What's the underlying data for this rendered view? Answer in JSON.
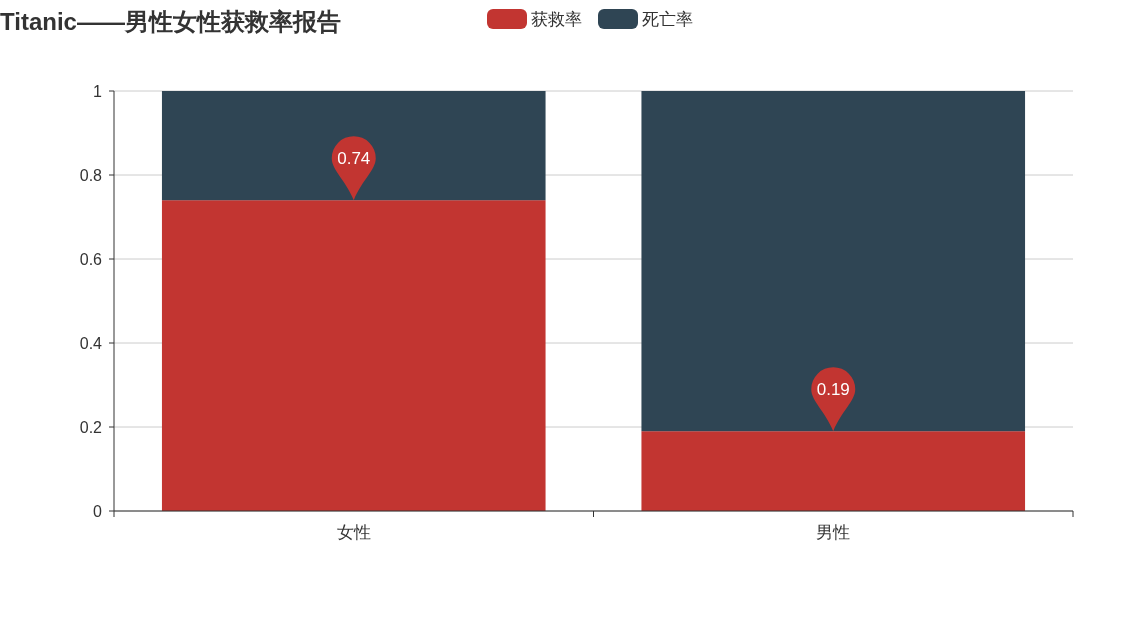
{
  "chart_data": {
    "type": "bar",
    "title": "Titanic——男性女性获救率报告",
    "categories": [
      "女性",
      "男性"
    ],
    "stacked": true,
    "ylim": [
      0,
      1
    ],
    "yticks": [
      0,
      0.2,
      0.4,
      0.6,
      0.8,
      1
    ],
    "grid": "y",
    "legend": "top",
    "series": [
      {
        "name": "获救率",
        "color": "#c23531",
        "values": [
          0.74,
          0.19
        ],
        "value_labels": [
          "0.74",
          "0.19"
        ]
      },
      {
        "name": "死亡率",
        "color": "#2f4554",
        "values": [
          0.26,
          0.81
        ]
      }
    ]
  }
}
